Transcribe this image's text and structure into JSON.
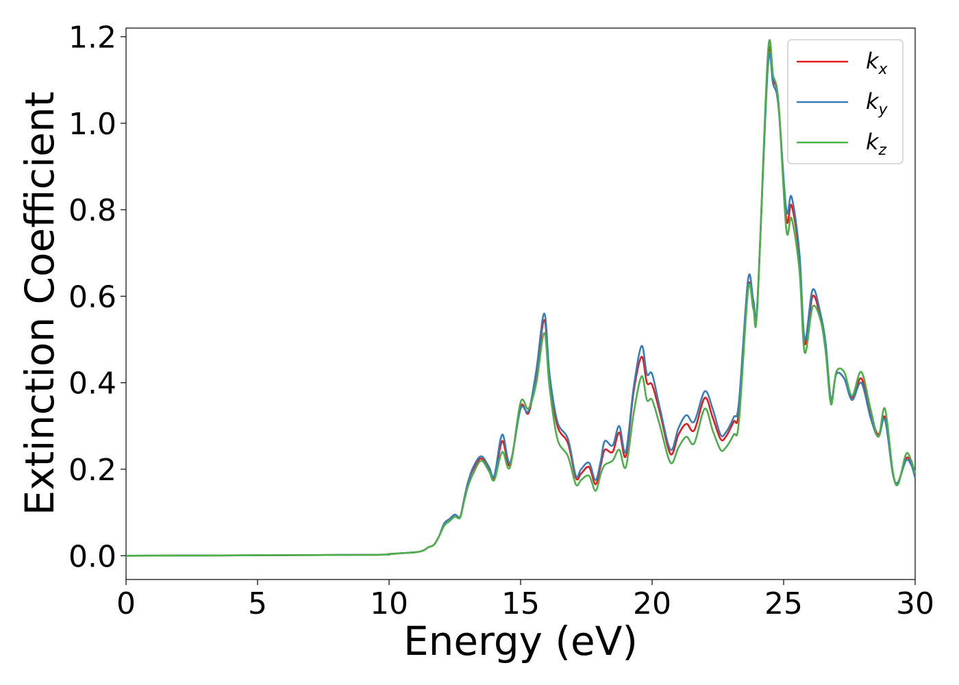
{
  "chart_data": {
    "type": "line",
    "title": "",
    "xlabel": "Energy (eV)",
    "ylabel": "Extinction Coefficient",
    "xlim": [
      0,
      30
    ],
    "ylim": [
      -0.055,
      1.22
    ],
    "xticks": [
      0,
      5,
      10,
      15,
      20,
      25,
      30
    ],
    "yticks": [
      0.0,
      0.2,
      0.4,
      0.6,
      0.8,
      1.0,
      1.2
    ],
    "xtick_labels": [
      "0",
      "5",
      "10",
      "15",
      "20",
      "25",
      "30"
    ],
    "ytick_labels": [
      "0.0",
      "0.2",
      "0.4",
      "0.6",
      "0.8",
      "1.0",
      "1.2"
    ],
    "grid": false,
    "legend": {
      "placement": "top-right",
      "entries": [
        {
          "base": "k",
          "sub": "x"
        },
        {
          "base": "k",
          "sub": "y"
        },
        {
          "base": "k",
          "sub": "z"
        }
      ]
    },
    "series": [
      {
        "name": "k_x",
        "color": "#e41a1c",
        "x": [
          0,
          9,
          10,
          10.5,
          11,
          11.3,
          11.5,
          11.7,
          11.9,
          12.1,
          12.3,
          12.5,
          12.7,
          12.85,
          13,
          13.2,
          13.5,
          13.8,
          14,
          14.3,
          14.6,
          15,
          15.3,
          15.6,
          15.9,
          16.1,
          16.4,
          16.8,
          17.1,
          17.3,
          17.6,
          17.85,
          18.05,
          18.2,
          18.5,
          18.75,
          19,
          19.3,
          19.6,
          19.8,
          20,
          20.3,
          20.7,
          21,
          21.3,
          21.6,
          22,
          22.3,
          22.6,
          22.8,
          23.1,
          23.3,
          23.65,
          23.85,
          24,
          24.4,
          24.6,
          24.8,
          25.1,
          25.3,
          25.6,
          25.8,
          26.1,
          26.4,
          26.6,
          26.8,
          27,
          27.3,
          27.6,
          27.95,
          28.3,
          28.6,
          28.85,
          29.15,
          29.35,
          29.65,
          29.85,
          30
        ],
        "y": [
          0.0,
          0.002,
          0.004,
          0.006,
          0.008,
          0.012,
          0.02,
          0.025,
          0.045,
          0.075,
          0.085,
          0.095,
          0.09,
          0.13,
          0.17,
          0.2,
          0.225,
          0.2,
          0.18,
          0.265,
          0.21,
          0.345,
          0.33,
          0.42,
          0.545,
          0.41,
          0.3,
          0.26,
          0.18,
          0.19,
          0.205,
          0.165,
          0.21,
          0.245,
          0.24,
          0.285,
          0.23,
          0.38,
          0.46,
          0.4,
          0.395,
          0.33,
          0.235,
          0.28,
          0.305,
          0.29,
          0.365,
          0.32,
          0.27,
          0.275,
          0.31,
          0.335,
          0.62,
          0.58,
          0.58,
          1.145,
          1.1,
          1.05,
          0.78,
          0.81,
          0.69,
          0.49,
          0.6,
          0.55,
          0.48,
          0.36,
          0.42,
          0.41,
          0.365,
          0.41,
          0.33,
          0.28,
          0.32,
          0.19,
          0.17,
          0.225,
          0.215,
          0.185
        ]
      },
      {
        "name": "k_y",
        "color": "#377eb8",
        "x": [
          0,
          9,
          10,
          10.5,
          11,
          11.3,
          11.5,
          11.7,
          11.9,
          12.1,
          12.3,
          12.5,
          12.7,
          12.85,
          13,
          13.2,
          13.5,
          13.8,
          14,
          14.3,
          14.6,
          15,
          15.3,
          15.6,
          15.9,
          16.1,
          16.4,
          16.8,
          17.1,
          17.3,
          17.6,
          17.85,
          18.05,
          18.2,
          18.5,
          18.75,
          19,
          19.3,
          19.6,
          19.8,
          20,
          20.3,
          20.7,
          21,
          21.3,
          21.6,
          22,
          22.3,
          22.6,
          22.8,
          23.1,
          23.3,
          23.65,
          23.85,
          24,
          24.4,
          24.6,
          24.8,
          25.1,
          25.3,
          25.6,
          25.8,
          26.1,
          26.4,
          26.6,
          26.8,
          27,
          27.3,
          27.6,
          27.95,
          28.3,
          28.6,
          28.85,
          29.15,
          29.35,
          29.65,
          29.85,
          30
        ],
        "y": [
          0.0,
          0.002,
          0.004,
          0.006,
          0.008,
          0.012,
          0.02,
          0.025,
          0.045,
          0.075,
          0.085,
          0.095,
          0.09,
          0.13,
          0.17,
          0.205,
          0.23,
          0.205,
          0.185,
          0.28,
          0.215,
          0.34,
          0.335,
          0.43,
          0.56,
          0.42,
          0.31,
          0.27,
          0.185,
          0.2,
          0.215,
          0.175,
          0.22,
          0.265,
          0.255,
          0.3,
          0.24,
          0.39,
          0.485,
          0.42,
          0.42,
          0.34,
          0.245,
          0.295,
          0.325,
          0.31,
          0.38,
          0.34,
          0.28,
          0.285,
          0.32,
          0.355,
          0.64,
          0.59,
          0.585,
          1.13,
          1.09,
          1.04,
          0.8,
          0.83,
          0.7,
          0.5,
          0.615,
          0.56,
          0.49,
          0.36,
          0.42,
          0.41,
          0.36,
          0.4,
          0.32,
          0.275,
          0.315,
          0.19,
          0.17,
          0.22,
          0.21,
          0.18
        ]
      },
      {
        "name": "k_z",
        "color": "#4daf4a",
        "x": [
          0,
          9,
          10,
          10.5,
          11,
          11.3,
          11.5,
          11.7,
          11.9,
          12.1,
          12.3,
          12.5,
          12.7,
          12.85,
          13,
          13.2,
          13.5,
          13.8,
          14,
          14.3,
          14.6,
          15,
          15.3,
          15.6,
          15.9,
          16.1,
          16.4,
          16.8,
          17.1,
          17.3,
          17.6,
          17.85,
          18.05,
          18.2,
          18.5,
          18.75,
          19,
          19.3,
          19.6,
          19.8,
          20,
          20.3,
          20.7,
          21,
          21.3,
          21.6,
          22,
          22.3,
          22.6,
          22.8,
          23.1,
          23.3,
          23.65,
          23.85,
          24,
          24.4,
          24.6,
          24.8,
          25.1,
          25.3,
          25.6,
          25.8,
          26.1,
          26.4,
          26.6,
          26.8,
          27,
          27.3,
          27.6,
          27.95,
          28.3,
          28.6,
          28.85,
          29.15,
          29.35,
          29.65,
          29.85,
          30
        ],
        "y": [
          0.0,
          0.002,
          0.004,
          0.006,
          0.008,
          0.012,
          0.02,
          0.025,
          0.045,
          0.07,
          0.08,
          0.09,
          0.088,
          0.125,
          0.16,
          0.19,
          0.22,
          0.195,
          0.175,
          0.24,
          0.205,
          0.355,
          0.34,
          0.4,
          0.515,
          0.39,
          0.27,
          0.23,
          0.165,
          0.175,
          0.185,
          0.15,
          0.19,
          0.21,
          0.22,
          0.245,
          0.205,
          0.33,
          0.415,
          0.36,
          0.36,
          0.3,
          0.215,
          0.25,
          0.275,
          0.26,
          0.34,
          0.29,
          0.245,
          0.25,
          0.28,
          0.31,
          0.615,
          0.57,
          0.575,
          1.16,
          1.11,
          1.05,
          0.755,
          0.78,
          0.66,
          0.47,
          0.575,
          0.545,
          0.47,
          0.35,
          0.425,
          0.425,
          0.37,
          0.425,
          0.34,
          0.275,
          0.34,
          0.195,
          0.165,
          0.235,
          0.22,
          0.19
        ]
      }
    ]
  }
}
